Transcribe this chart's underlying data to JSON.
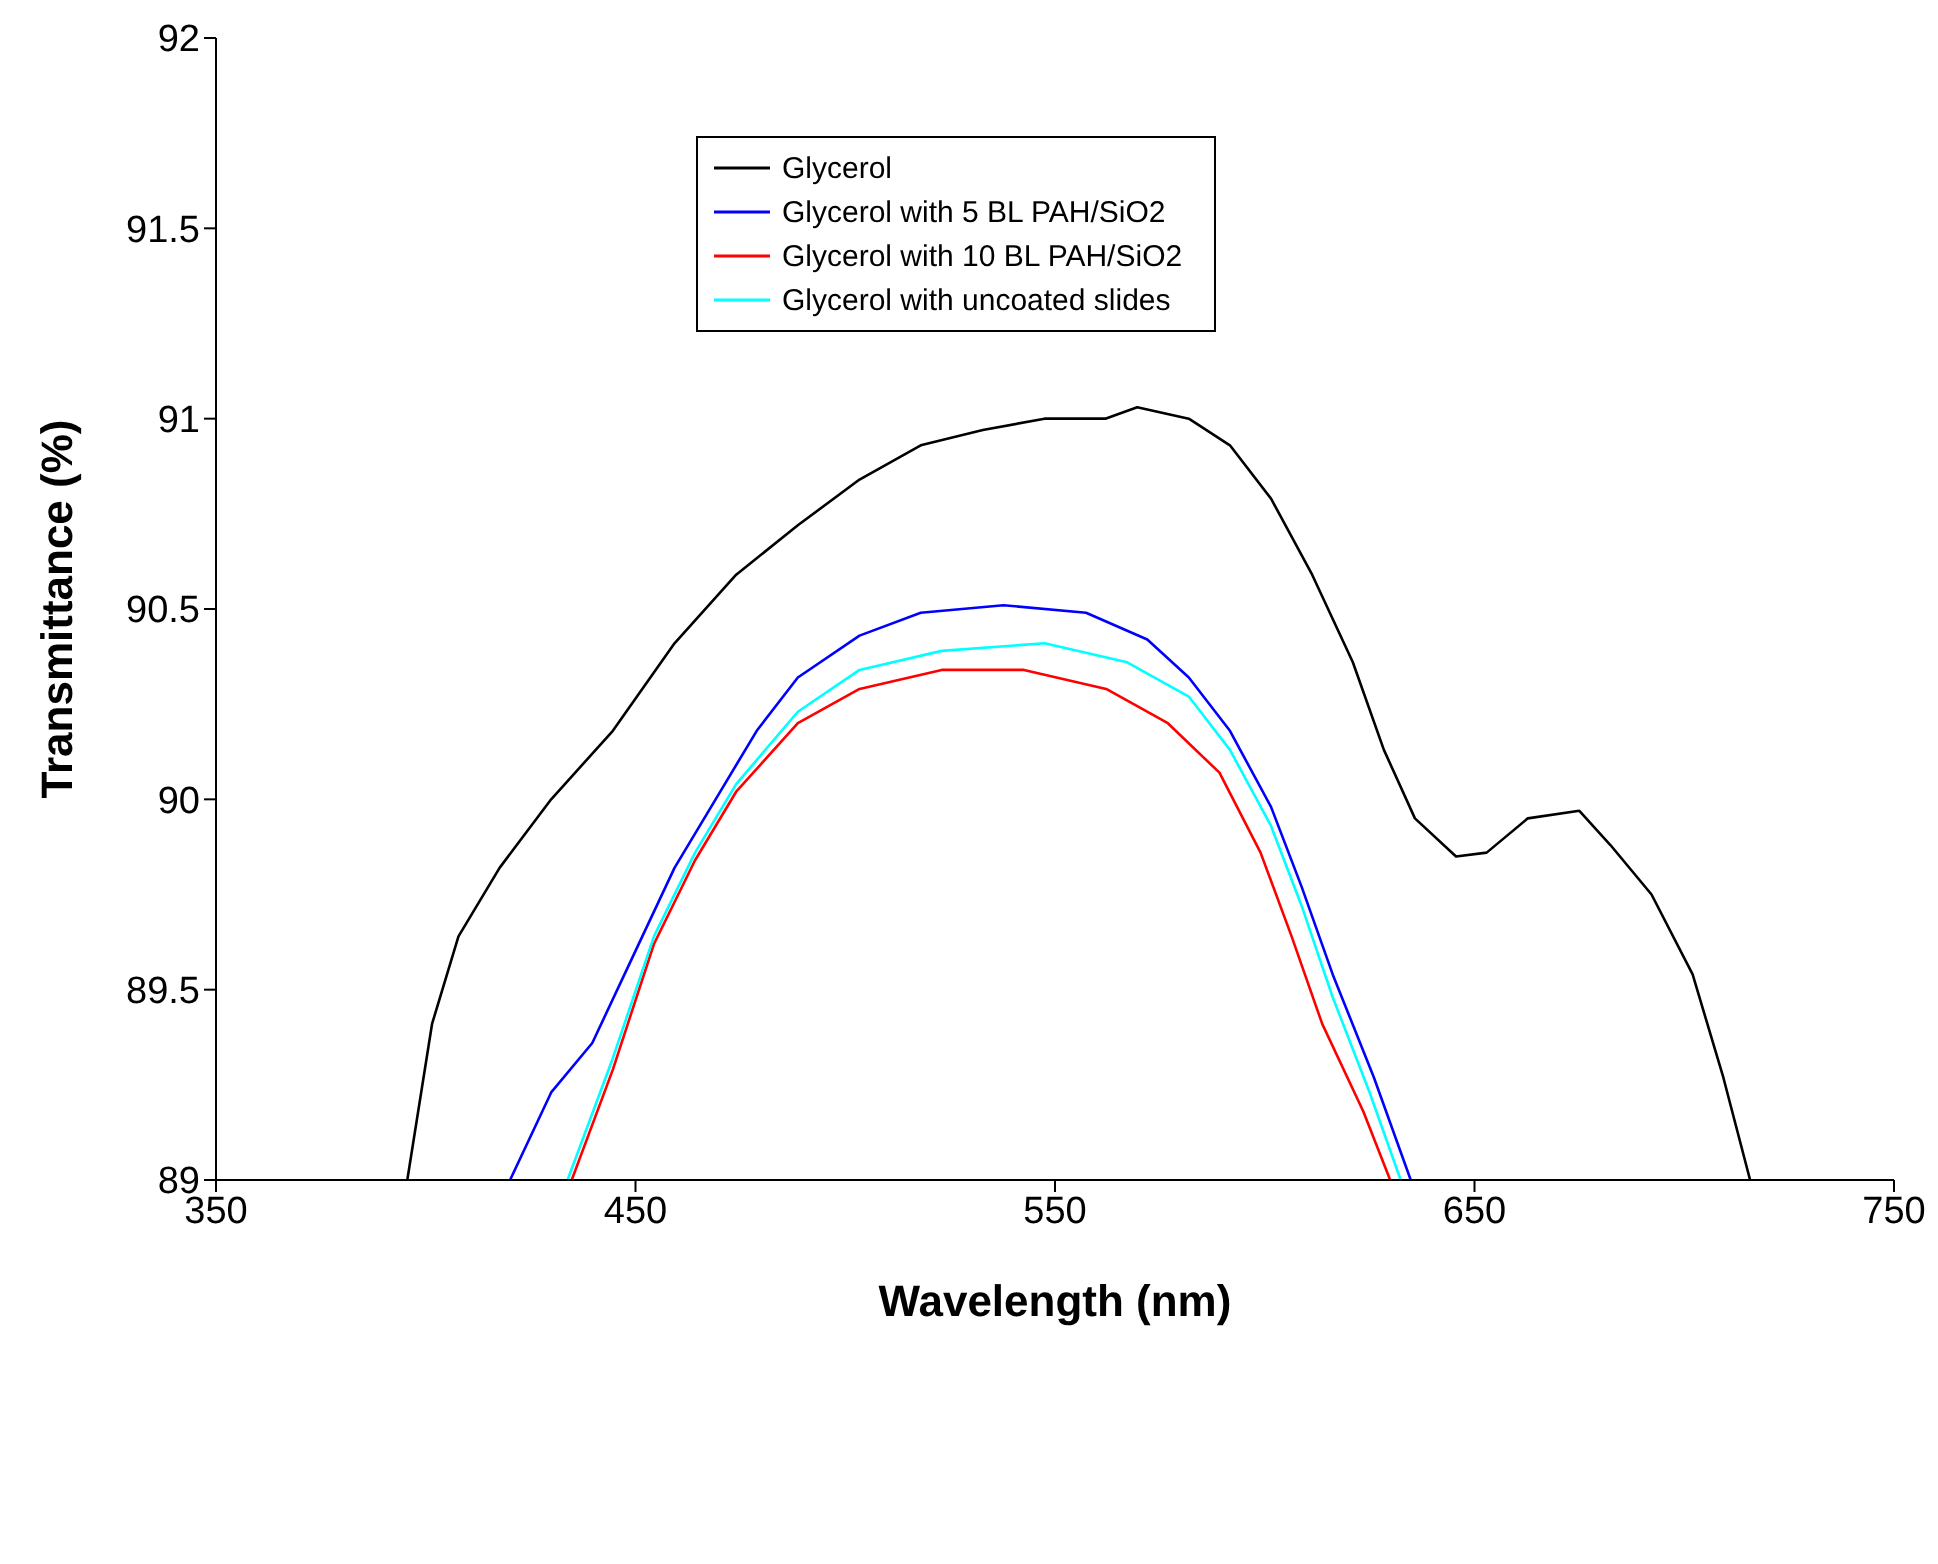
{
  "chart_data": {
    "type": "line",
    "xlabel": "Wavelength (nm)",
    "ylabel": "Transmittance (%)",
    "xlim": [
      350,
      750
    ],
    "xticks": [
      350,
      450,
      550,
      650,
      750
    ],
    "ylim": [
      89,
      92
    ],
    "yticks": [
      89,
      89.5,
      90,
      90.5,
      91,
      91.5,
      92
    ],
    "grid": false,
    "legend": "top",
    "marker": "none",
    "line_style": "solid",
    "series": [
      {
        "name": "Glycerol",
        "color": "#000000",
        "x": [
          395.6,
          401.5,
          407.8,
          417.6,
          429.9,
          444.6,
          459.3,
          474,
          488.7,
          503.4,
          518,
          532.8,
          547.5,
          562,
          569.6,
          581.9,
          591.7,
          601.5,
          611.3,
          621,
          628.4,
          635.8,
          645.6,
          652.9,
          662.7,
          675,
          682.4,
          692.2,
          702,
          709.3,
          715.7
        ],
        "values": [
          89.0,
          89.41,
          89.64,
          89.82,
          90.0,
          90.18,
          90.41,
          90.59,
          90.72,
          90.84,
          90.93,
          90.97,
          91.0,
          91.0,
          91.03,
          91.0,
          90.93,
          90.79,
          90.59,
          90.36,
          90.13,
          89.95,
          89.85,
          89.86,
          89.95,
          89.97,
          89.88,
          89.75,
          89.54,
          89.27,
          89.0
        ]
      },
      {
        "name": "Glycerol with 5 BL PAH/SiO2",
        "color": "#0000ff",
        "x": [
          420.1,
          429.9,
          439.7,
          449.5,
          459.3,
          469.1,
          478.9,
          488.7,
          503.4,
          518,
          537.7,
          557.4,
          572,
          581.9,
          591.7,
          601.5,
          608.8,
          616.2,
          626,
          634.8
        ],
        "values": [
          89.0,
          89.23,
          89.36,
          89.59,
          89.82,
          90.0,
          90.18,
          90.32,
          90.43,
          90.49,
          90.51,
          90.49,
          90.42,
          90.32,
          90.18,
          89.98,
          89.77,
          89.54,
          89.27,
          89.0
        ]
      },
      {
        "name": "Glycerol with 10 BL PAH/SiO2",
        "color": "#ff0000",
        "x": [
          434.8,
          444.6,
          454.4,
          464.2,
          474,
          488.7,
          503.4,
          523,
          542.6,
          562.2,
          576.9,
          589.2,
          599,
          606.4,
          613.7,
          623.5,
          629.9
        ],
        "values": [
          89.0,
          89.29,
          89.62,
          89.84,
          90.02,
          90.2,
          90.29,
          90.34,
          90.34,
          90.29,
          90.2,
          90.07,
          89.86,
          89.64,
          89.41,
          89.18,
          89.0
        ]
      },
      {
        "name": "Glycerol with uncoated slides",
        "color": "#00ffff",
        "x": [
          433.8,
          444.6,
          454.4,
          464.2,
          474,
          488.7,
          503.4,
          523,
          547.5,
          567.2,
          581.9,
          591.7,
          601.5,
          608.8,
          616.2,
          625,
          632.4
        ],
        "values": [
          89.0,
          89.32,
          89.64,
          89.86,
          90.04,
          90.23,
          90.34,
          90.39,
          90.41,
          90.36,
          90.27,
          90.13,
          89.93,
          89.72,
          89.48,
          89.23,
          89.0
        ]
      }
    ]
  }
}
